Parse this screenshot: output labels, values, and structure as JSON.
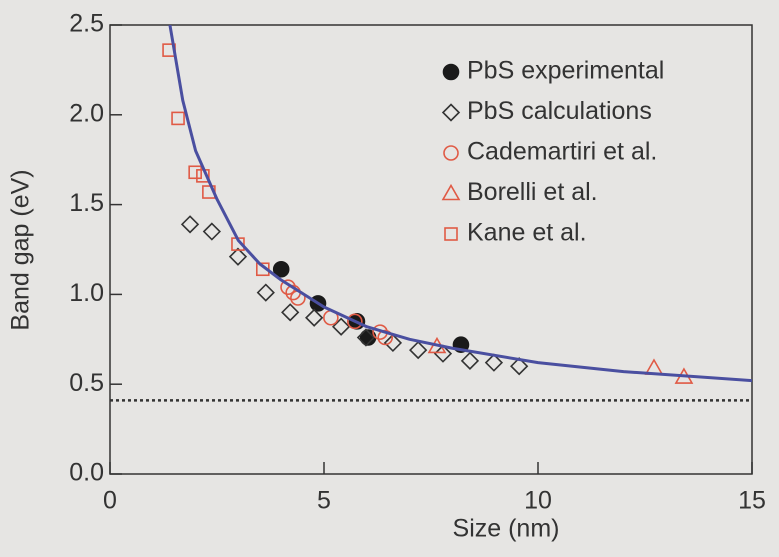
{
  "chart_data": {
    "type": "scatter",
    "xlabel": "Size (nm)",
    "ylabel": "Band gap (eV)",
    "xlim": [
      0,
      15
    ],
    "ylim": [
      0,
      2.5
    ],
    "xticks": [
      0,
      5,
      10,
      15
    ],
    "yticks": [
      {
        "value": 0,
        "label": "0.0"
      },
      0.5,
      {
        "value": 1,
        "label": "1.0"
      },
      1.5,
      {
        "value": 2,
        "label": "2.0"
      },
      2.5
    ],
    "legend": "upper right",
    "hlines": [
      0.41
    ],
    "series": [
      {
        "name": "PbS experimental",
        "color": "#1a1a1a",
        "marker": "circle-filled",
        "x": [
          4.0,
          4.86,
          5.77,
          6.03,
          8.2
        ],
        "values": [
          1.14,
          0.95,
          0.85,
          0.76,
          0.72
        ]
      },
      {
        "name": "PbS calculations",
        "color": "#333333",
        "marker": "diamond",
        "x": [
          1.87,
          2.38,
          2.99,
          3.64,
          4.21,
          4.77,
          5.4,
          5.98,
          6.61,
          7.2,
          7.78,
          8.41,
          8.97,
          9.56
        ],
        "values": [
          1.39,
          1.35,
          1.21,
          1.01,
          0.9,
          0.87,
          0.82,
          0.76,
          0.73,
          0.69,
          0.67,
          0.63,
          0.62,
          0.6
        ]
      },
      {
        "name": "Cademartiri et al.",
        "color": "#e05a45",
        "marker": "circle",
        "x": [
          4.16,
          4.28,
          4.39,
          5.16,
          5.72,
          6.31,
          6.43
        ],
        "values": [
          1.04,
          1.01,
          0.98,
          0.87,
          0.85,
          0.79,
          0.76
        ]
      },
      {
        "name": "Borelli et al.",
        "color": "#e05a45",
        "marker": "triangle",
        "x": [
          7.64,
          12.71,
          13.41
        ],
        "values": [
          0.71,
          0.59,
          0.54
        ]
      },
      {
        "name": "Kane et al.",
        "color": "#e05a45",
        "marker": "square",
        "x": [
          1.38,
          1.59,
          1.99,
          2.17,
          2.31,
          2.99,
          3.57
        ],
        "values": [
          2.36,
          1.98,
          1.68,
          1.66,
          1.57,
          1.28,
          1.14
        ]
      },
      {
        "color": "#4a4fa0",
        "marker": "line",
        "x": [
          1.4,
          1.7,
          2,
          2.5,
          3,
          3.5,
          4,
          5,
          6,
          7,
          8,
          10,
          12,
          15
        ],
        "values": [
          2.5,
          2.08,
          1.8,
          1.53,
          1.3,
          1.17,
          1.08,
          0.93,
          0.82,
          0.75,
          0.7,
          0.62,
          0.57,
          0.52
        ]
      }
    ]
  }
}
